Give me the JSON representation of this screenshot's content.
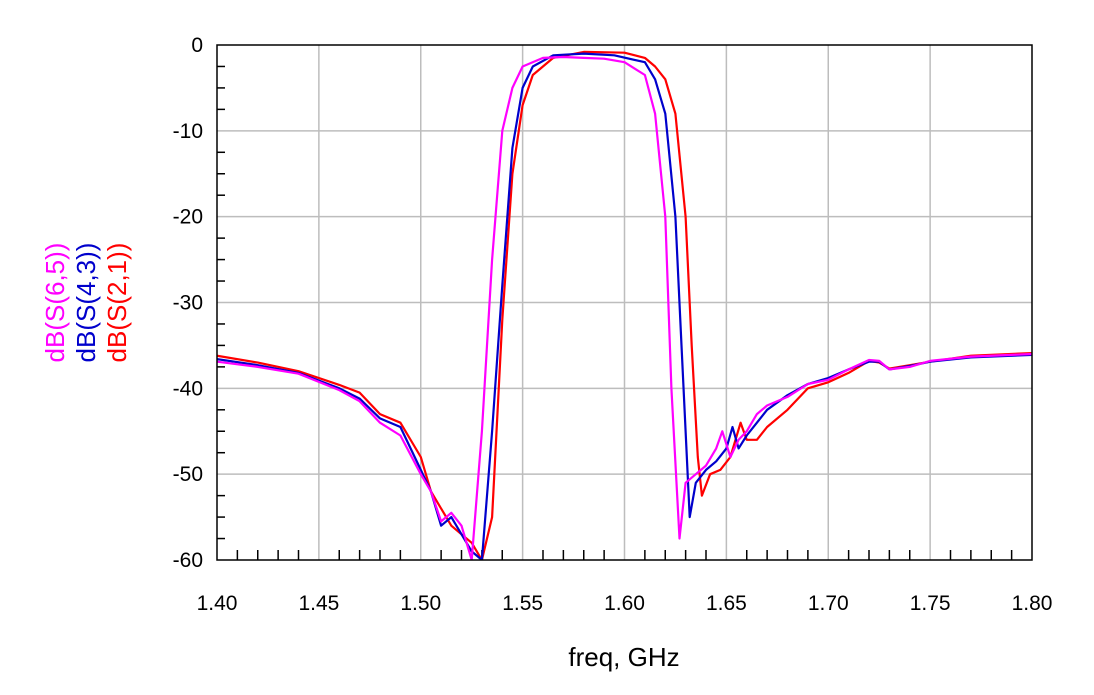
{
  "chart_data": {
    "type": "line",
    "title": "",
    "xlabel": "freq, GHz",
    "ylabel": "",
    "xlim": [
      1.4,
      1.8
    ],
    "ylim": [
      -60,
      0
    ],
    "grid": true,
    "legend_position": "left-vertical",
    "x_ticks": [
      "1.40",
      "1.45",
      "1.50",
      "1.55",
      "1.60",
      "1.65",
      "1.70",
      "1.75",
      "1.80"
    ],
    "y_ticks": [
      "0",
      "-10",
      "-20",
      "-30",
      "-40",
      "-50",
      "-60"
    ],
    "series": [
      {
        "name": "dB(S(6,5))",
        "color": "#ff00ff",
        "points": [
          [
            1.4,
            -36.9
          ],
          [
            1.42,
            -37.5
          ],
          [
            1.44,
            -38.3
          ],
          [
            1.46,
            -40.2
          ],
          [
            1.47,
            -41.5
          ],
          [
            1.48,
            -44.0
          ],
          [
            1.49,
            -45.5
          ],
          [
            1.5,
            -50.0
          ],
          [
            1.505,
            -52.0
          ],
          [
            1.51,
            -55.5
          ],
          [
            1.515,
            -54.5
          ],
          [
            1.52,
            -56.0
          ],
          [
            1.525,
            -60.0
          ],
          [
            1.53,
            -45.0
          ],
          [
            1.535,
            -25.0
          ],
          [
            1.54,
            -10.0
          ],
          [
            1.545,
            -5.0
          ],
          [
            1.55,
            -2.5
          ],
          [
            1.56,
            -1.5
          ],
          [
            1.57,
            -1.4
          ],
          [
            1.58,
            -1.5
          ],
          [
            1.59,
            -1.6
          ],
          [
            1.6,
            -2.0
          ],
          [
            1.61,
            -3.5
          ],
          [
            1.615,
            -8.0
          ],
          [
            1.62,
            -20.0
          ],
          [
            1.623,
            -40.0
          ],
          [
            1.627,
            -57.5
          ],
          [
            1.63,
            -51.0
          ],
          [
            1.635,
            -50.0
          ],
          [
            1.64,
            -49.0
          ],
          [
            1.645,
            -47.0
          ],
          [
            1.648,
            -45.0
          ],
          [
            1.652,
            -48.0
          ],
          [
            1.656,
            -46.0
          ],
          [
            1.66,
            -45.0
          ],
          [
            1.665,
            -43.0
          ],
          [
            1.67,
            -42.0
          ],
          [
            1.68,
            -41.0
          ],
          [
            1.69,
            -39.5
          ],
          [
            1.7,
            -39.0
          ],
          [
            1.71,
            -37.8
          ],
          [
            1.72,
            -36.7
          ],
          [
            1.725,
            -36.8
          ],
          [
            1.73,
            -37.8
          ],
          [
            1.74,
            -37.5
          ],
          [
            1.75,
            -36.8
          ],
          [
            1.77,
            -36.3
          ],
          [
            1.8,
            -36.0
          ]
        ]
      },
      {
        "name": "dB(S(4,3))",
        "color": "#0000cc",
        "points": [
          [
            1.4,
            -36.6
          ],
          [
            1.42,
            -37.3
          ],
          [
            1.44,
            -38.2
          ],
          [
            1.46,
            -40.0
          ],
          [
            1.47,
            -41.2
          ],
          [
            1.48,
            -43.5
          ],
          [
            1.49,
            -44.5
          ],
          [
            1.5,
            -49.5
          ],
          [
            1.505,
            -52.0
          ],
          [
            1.51,
            -56.0
          ],
          [
            1.515,
            -55.0
          ],
          [
            1.52,
            -57.0
          ],
          [
            1.525,
            -59.0
          ],
          [
            1.53,
            -60.0
          ],
          [
            1.535,
            -45.0
          ],
          [
            1.54,
            -28.0
          ],
          [
            1.545,
            -12.0
          ],
          [
            1.55,
            -5.0
          ],
          [
            1.555,
            -2.5
          ],
          [
            1.565,
            -1.2
          ],
          [
            1.58,
            -1.0
          ],
          [
            1.595,
            -1.2
          ],
          [
            1.61,
            -2.0
          ],
          [
            1.615,
            -4.0
          ],
          [
            1.62,
            -8.0
          ],
          [
            1.625,
            -20.0
          ],
          [
            1.628,
            -35.0
          ],
          [
            1.632,
            -55.0
          ],
          [
            1.635,
            -51.0
          ],
          [
            1.64,
            -49.5
          ],
          [
            1.645,
            -48.5
          ],
          [
            1.65,
            -47.0
          ],
          [
            1.653,
            -44.5
          ],
          [
            1.656,
            -47.0
          ],
          [
            1.66,
            -45.5
          ],
          [
            1.665,
            -44.0
          ],
          [
            1.67,
            -42.5
          ],
          [
            1.68,
            -40.8
          ],
          [
            1.69,
            -39.5
          ],
          [
            1.7,
            -38.8
          ],
          [
            1.71,
            -37.8
          ],
          [
            1.72,
            -36.9
          ],
          [
            1.725,
            -36.9
          ],
          [
            1.73,
            -37.8
          ],
          [
            1.74,
            -37.4
          ],
          [
            1.75,
            -36.9
          ],
          [
            1.77,
            -36.4
          ],
          [
            1.8,
            -36.1
          ]
        ]
      },
      {
        "name": "dB(S(2,1))",
        "color": "#ff0000",
        "points": [
          [
            1.4,
            -36.2
          ],
          [
            1.42,
            -37.0
          ],
          [
            1.44,
            -38.0
          ],
          [
            1.46,
            -39.6
          ],
          [
            1.47,
            -40.5
          ],
          [
            1.48,
            -43.0
          ],
          [
            1.49,
            -44.0
          ],
          [
            1.5,
            -48.0
          ],
          [
            1.505,
            -52.0
          ],
          [
            1.51,
            -54.0
          ],
          [
            1.515,
            -56.0
          ],
          [
            1.52,
            -57.0
          ],
          [
            1.525,
            -58.0
          ],
          [
            1.53,
            -60.0
          ],
          [
            1.535,
            -55.0
          ],
          [
            1.54,
            -32.0
          ],
          [
            1.545,
            -15.0
          ],
          [
            1.55,
            -7.0
          ],
          [
            1.555,
            -3.5
          ],
          [
            1.565,
            -1.5
          ],
          [
            1.58,
            -0.8
          ],
          [
            1.6,
            -0.9
          ],
          [
            1.61,
            -1.5
          ],
          [
            1.615,
            -2.5
          ],
          [
            1.62,
            -4.0
          ],
          [
            1.625,
            -8.0
          ],
          [
            1.63,
            -20.0
          ],
          [
            1.633,
            -35.0
          ],
          [
            1.636,
            -48.0
          ],
          [
            1.638,
            -52.5
          ],
          [
            1.642,
            -50.0
          ],
          [
            1.647,
            -49.5
          ],
          [
            1.652,
            -48.0
          ],
          [
            1.657,
            -44.0
          ],
          [
            1.66,
            -46.0
          ],
          [
            1.665,
            -46.0
          ],
          [
            1.67,
            -44.5
          ],
          [
            1.68,
            -42.5
          ],
          [
            1.69,
            -40.0
          ],
          [
            1.7,
            -39.3
          ],
          [
            1.71,
            -38.2
          ],
          [
            1.72,
            -36.8
          ],
          [
            1.725,
            -37.0
          ],
          [
            1.73,
            -37.7
          ],
          [
            1.74,
            -37.3
          ],
          [
            1.75,
            -36.9
          ],
          [
            1.77,
            -36.2
          ],
          [
            1.8,
            -35.9
          ]
        ]
      }
    ]
  }
}
